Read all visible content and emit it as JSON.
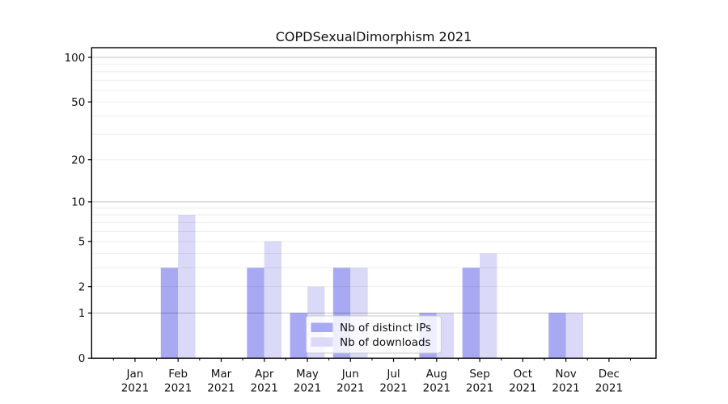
{
  "chart_data": {
    "type": "bar",
    "title": "COPDSexualDimorphism 2021",
    "categories": [
      "Jan",
      "Feb",
      "Mar",
      "Apr",
      "May",
      "Jun",
      "Jul",
      "Aug",
      "Sep",
      "Oct",
      "Nov",
      "Dec"
    ],
    "year": "2021",
    "series": [
      {
        "name": "Nb of distinct IPs",
        "color": "#a8a8f3",
        "values": [
          0,
          3,
          0,
          3,
          1,
          3,
          0,
          1,
          3,
          0,
          1,
          0
        ]
      },
      {
        "name": "Nb of downloads",
        "color": "#dadaf8",
        "values": [
          0,
          8,
          0,
          5,
          2,
          3,
          0,
          1,
          4,
          0,
          1,
          0
        ]
      }
    ],
    "yscale": "log1p",
    "ylim": [
      0,
      100
    ],
    "yticks": [
      0,
      1,
      2,
      5,
      10,
      20,
      50,
      100
    ],
    "major_grid": [
      1,
      10,
      100
    ],
    "minor_grid": [
      2,
      3,
      4,
      5,
      6,
      7,
      8,
      9,
      20,
      30,
      40,
      50,
      60,
      70,
      80,
      90
    ],
    "grid": "on",
    "legend_position": "inside lower-center",
    "colors": {
      "major_gridline": "#c2c2c2",
      "minor_gridline": "#ededed",
      "spine": "#000000",
      "text": "#111111",
      "legend_border": "#cccccc"
    }
  }
}
